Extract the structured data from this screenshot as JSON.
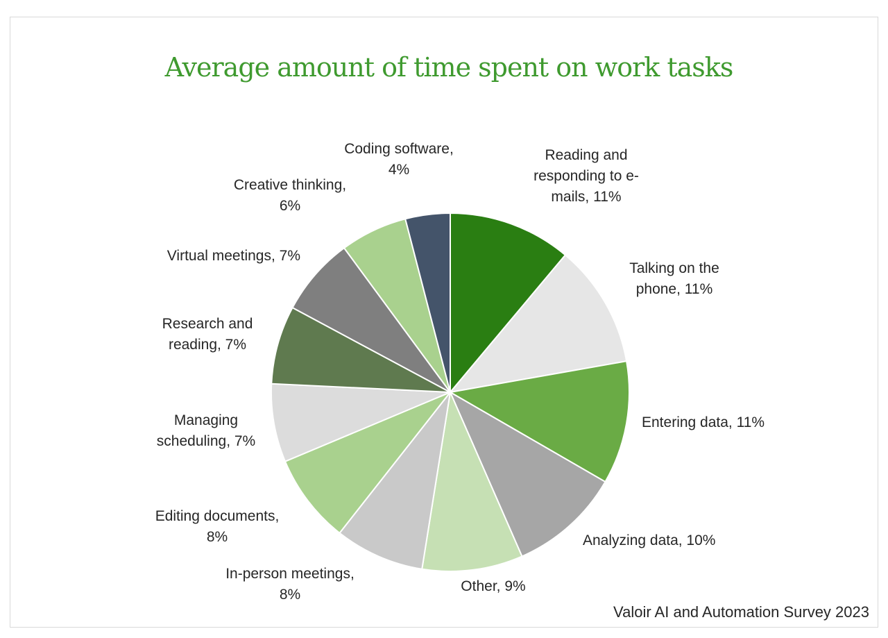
{
  "chart_data": {
    "type": "pie",
    "title": "Average amount of time spent on work tasks",
    "source": "Valoir AI and Automation Survey 2023",
    "slices": [
      {
        "name": "Reading and responding to e-mails",
        "value": 11,
        "label_lines": [
          "Reading and",
          "responding to e-",
          "mails, 11%"
        ],
        "color": "#2a7e12"
      },
      {
        "name": "Talking on the phone",
        "value": 11,
        "label_lines": [
          "Talking on the",
          "phone, 11%"
        ],
        "color": "#e6e6e6"
      },
      {
        "name": "Entering data",
        "value": 11,
        "label_lines": [
          "Entering data, 11%"
        ],
        "color": "#6aab45"
      },
      {
        "name": "Analyzing data",
        "value": 10,
        "label_lines": [
          "Analyzing data, 10%"
        ],
        "color": "#a6a6a6"
      },
      {
        "name": "Other",
        "value": 9,
        "label_lines": [
          "Other, 9%"
        ],
        "color": "#c6e0b4"
      },
      {
        "name": "In-person meetings",
        "value": 8,
        "label_lines": [
          "In-person meetings,",
          "8%"
        ],
        "color": "#c9c9c9"
      },
      {
        "name": "Editing documents",
        "value": 8,
        "label_lines": [
          "Editing documents,",
          "8%"
        ],
        "color": "#a9d18e"
      },
      {
        "name": "Managing scheduling",
        "value": 7,
        "label_lines": [
          "Managing",
          "scheduling, 7%"
        ],
        "color": "#dcdcdc"
      },
      {
        "name": "Research and reading",
        "value": 7,
        "label_lines": [
          "Research and",
          "reading, 7%"
        ],
        "color": "#5f7a4f"
      },
      {
        "name": "Virtual meetings",
        "value": 7,
        "label_lines": [
          "Virtual meetings, 7%"
        ],
        "color": "#7f7f7f"
      },
      {
        "name": "Creative thinking",
        "value": 6,
        "label_lines": [
          "Creative thinking,",
          "6%"
        ],
        "color": "#a9d18e"
      },
      {
        "name": "Coding software",
        "value": 4,
        "label_lines": [
          "Coding software,",
          "4%"
        ],
        "color": "#44546a"
      }
    ],
    "label_anchor": {
      "Reading and responding to e-mails": "middle",
      "Talking on the phone": "middle",
      "Entering data": "start",
      "Analyzing data": "start",
      "Other": "middle",
      "In-person meetings": "middle",
      "Editing documents": "middle",
      "Managing scheduling": "middle",
      "Research and reading": "middle",
      "Virtual meetings": "end",
      "Creative thinking": "middle",
      "Coding software": "middle"
    }
  }
}
